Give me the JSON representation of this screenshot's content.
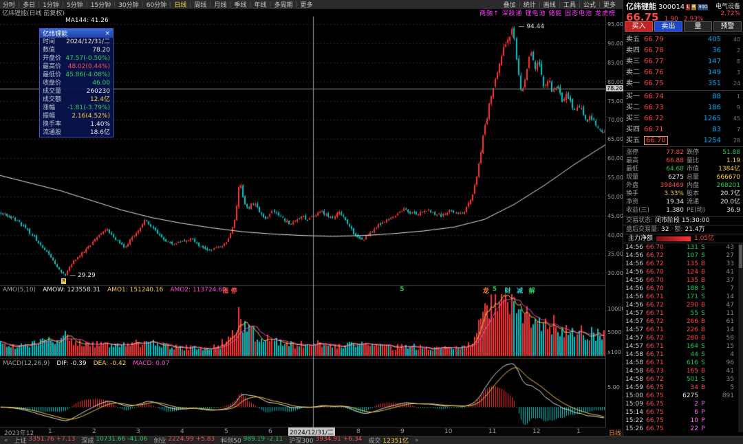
{
  "window": {
    "menu": {
      "left_items": [
        "分时",
        "多日",
        "1分钟",
        "5分钟",
        "15分钟",
        "30分钟",
        "60分钟",
        "日线",
        "周线",
        "月线",
        "季线",
        "年线",
        "多周期",
        "更多"
      ],
      "active_item": "日线",
      "right_items": [
        "叠加",
        "统计",
        "画线",
        "工具",
        "公式",
        "更多"
      ]
    },
    "chart_label": "亿纬锂能(日线 前复权)",
    "ticker_text": "两融↑ 深股通 锂电池 储能 固态电池 龙虎榜",
    "period_tag": "日线",
    "status_bar": [
      {
        "label": "上证",
        "value": "3351.76",
        "delta": "+7.13",
        "dir": "up"
      },
      {
        "label": "深成",
        "value": "10731.66",
        "delta": "-41.06",
        "dir": "down"
      },
      {
        "label": "创业",
        "value": "2224.99",
        "delta": "+5.83",
        "dir": "up"
      },
      {
        "label": "科创50",
        "value": "989.19",
        "delta": "-2.11",
        "dir": "down"
      },
      {
        "label": "沪深300",
        "value": "3934.91",
        "delta": "+6.34",
        "dir": "up"
      },
      {
        "label": "成交",
        "value": "12351亿",
        "delta": "",
        "dir": "flat"
      }
    ]
  },
  "tooltip": {
    "title": "亿纬锂能",
    "close_glyph": "×",
    "rows": [
      {
        "label": "时间",
        "value": "2024/12/31/二",
        "color": "#e8e8e8"
      },
      {
        "label": "数值",
        "value": "78.20",
        "color": "#e8e8e8"
      },
      {
        "label": "开盘价",
        "value": "47.57(-0.50%)",
        "color": "#2fd05a"
      },
      {
        "label": "最高价",
        "value": "48.02(0.44%)",
        "color": "#ff4a4a"
      },
      {
        "label": "最低价",
        "value": "45.86(-4.08%)",
        "color": "#2fd05a"
      },
      {
        "label": "收盘价",
        "value": "46.00",
        "color": "#2fd05a"
      },
      {
        "label": "成交量",
        "value": "260230",
        "color": "#e8e8e8"
      },
      {
        "label": "成交额",
        "value": "12.4亿",
        "color": "#ffd23c"
      },
      {
        "label": "涨幅",
        "value": "-1.81(-3.79%)",
        "color": "#2fd05a"
      },
      {
        "label": "振幅",
        "value": "2.16(4.52%)",
        "color": "#ffd23c"
      },
      {
        "label": "换手率",
        "value": "1.40%",
        "color": "#e8e8e8"
      },
      {
        "label": "流通股",
        "value": "18.6亿",
        "color": "#e8e8e8"
      }
    ]
  },
  "indicators": {
    "ma_label": "MA144: 41.26",
    "amo": {
      "name": "AMO(5,10)",
      "amow": "AMOW: 123558.31",
      "amo1": "AMO1: 151240.16",
      "amo2": "AMO2: 113724.60",
      "unit": "x100"
    },
    "macd": {
      "name": "MACD(12,26,9)",
      "dif": "DIF: -0.39",
      "dea": "DEA: -0.42",
      "macd": "MACD: 0.07",
      "axis_label": "5.00"
    }
  },
  "quote": {
    "name": "亿纬锂能",
    "code": "300014",
    "badges": [
      {
        "text": "L",
        "bg": "#a03030"
      },
      {
        "text": "R",
        "bg": "#a07818"
      },
      {
        "text": "300",
        "bg": "#2a4a78"
      }
    ],
    "industry": "电气设备",
    "price": "66.75",
    "change": "1.90",
    "pct": "2.93%",
    "pct2": "2.72%",
    "buttons": [
      "买入",
      "卖出",
      "量",
      "预警"
    ],
    "asks": [
      {
        "label": "卖五",
        "price": "66.79",
        "vol": "405",
        "n": "40"
      },
      {
        "label": "卖四",
        "price": "66.78",
        "vol": "36",
        "n": "2"
      },
      {
        "label": "卖三",
        "price": "66.77",
        "vol": "147",
        "n": "8"
      },
      {
        "label": "卖二",
        "price": "66.76",
        "vol": "149",
        "n": "3"
      },
      {
        "label": "卖一",
        "price": "66.75",
        "vol": "351",
        "n": "24"
      }
    ],
    "bids": [
      {
        "label": "买一",
        "price": "66.74",
        "vol": "88",
        "n": "1"
      },
      {
        "label": "买二",
        "price": "66.73",
        "vol": "186",
        "n": "9"
      },
      {
        "label": "买三",
        "price": "66.72",
        "vol": "1265",
        "n": "45"
      },
      {
        "label": "买四",
        "price": "66.71",
        "vol": "83",
        "n": "7"
      },
      {
        "label": "买五",
        "price": "66.70",
        "vol": "1254",
        "n": "28",
        "boxed": true
      }
    ],
    "stats": [
      {
        "k1": "涨停",
        "v1": "77.82",
        "c1": "#ff4a4a",
        "k2": "跌停",
        "v2": "51.88",
        "c2": "#1ecb5a"
      },
      {
        "k1": "最高",
        "v1": "66.88",
        "c1": "#ff4a4a",
        "k2": "量比",
        "v2": "1.19",
        "c2": "#ffd23c"
      },
      {
        "k1": "最低",
        "v1": "64.68",
        "c1": "#1ecb5a",
        "k2": "市值",
        "v2": "1384亿",
        "c2": "#ffd23c"
      },
      {
        "k1": "现量",
        "v1": "6275",
        "c1": "#e8e8e8",
        "k2": "总量",
        "v2": "666670",
        "c2": "#ffd23c"
      },
      {
        "k1": "外盘",
        "v1": "398469",
        "c1": "#ff4a4a",
        "k2": "内盘",
        "v2": "268201",
        "c2": "#1ecb5a"
      },
      {
        "k1": "换手",
        "v1": "3.33%",
        "c1": "#ffd23c",
        "k2": "股本",
        "v2": "20.7亿",
        "c2": "#e8e8e8"
      },
      {
        "k1": "净资",
        "v1": "19.34",
        "c1": "#e8e8e8",
        "k2": "流通",
        "v2": "20.0亿",
        "c2": "#e8e8e8"
      },
      {
        "k1": "收益(三)",
        "v1": "1.380",
        "c1": "#e8e8e8",
        "k2": "PE(动)",
        "v2": "36.9",
        "c2": "#e8e8e8"
      }
    ],
    "session": {
      "label": "交易状态:",
      "value": "闭市阶段 15:30:00"
    },
    "after_hours": {
      "label": "盘后交易量:",
      "vol": "32",
      "amount_label": "额:",
      "amount": "21.4万"
    },
    "main_flow": {
      "label": "主力净额",
      "value": "1.05亿"
    },
    "ticks": [
      [
        "14:56",
        "66.70",
        "131",
        "S",
        "43"
      ],
      [
        "14:56",
        "66.72",
        "107",
        "S",
        "27"
      ],
      [
        "14:56",
        "66.72",
        "135",
        "B",
        "33"
      ],
      [
        "14:56",
        "66.70",
        "124",
        "B",
        "41"
      ],
      [
        "14:56",
        "66.70",
        "135",
        "B",
        "37"
      ],
      [
        "14:56",
        "66.70",
        "188",
        "S",
        "7"
      ],
      [
        "14:56",
        "66.71",
        "171",
        "S",
        "14"
      ],
      [
        "14:56",
        "66.72",
        "290",
        "B",
        "47"
      ],
      [
        "14:57",
        "66.71",
        "55",
        "S",
        "11"
      ],
      [
        "14:57",
        "66.72",
        "266",
        "B",
        "61"
      ],
      [
        "14:57",
        "66.71",
        "226",
        "B",
        "14"
      ],
      [
        "14:57",
        "66.72",
        "280",
        "B",
        "58"
      ],
      [
        "14:57",
        "66.71",
        "164",
        "S",
        "15"
      ],
      [
        "14:58",
        "66.71",
        "44",
        "S",
        "4"
      ],
      [
        "14:58",
        "66.71",
        "616",
        "S",
        "96"
      ],
      [
        "14:58",
        "66.73",
        "165",
        "B",
        "41"
      ],
      [
        "14:58",
        "66.72",
        "501",
        "S",
        "35"
      ],
      [
        "14:59",
        "66.75",
        "34",
        "B",
        "5"
      ],
      [
        "15:00",
        "66.75",
        "6275",
        "",
        "891"
      ],
      [
        "15:09",
        "66.75",
        "2",
        "P",
        ""
      ],
      [
        "15:14",
        "66.75",
        "6",
        "P",
        ""
      ],
      [
        "15:22",
        "66.75",
        "10",
        "P",
        ""
      ],
      [
        "15:26",
        "66.75",
        "22",
        "P",
        ""
      ]
    ]
  },
  "chart_data": {
    "type": "candlestick",
    "symbol": "亿纬锂能 300014",
    "period": "日线 前复权",
    "seed": 77,
    "num_bars": 290,
    "price_axis": {
      "min": 27,
      "max": 97,
      "ticks": [
        95,
        90,
        85,
        80,
        75,
        70,
        65,
        60,
        55,
        50,
        45,
        40,
        35,
        30
      ]
    },
    "x_labels": [
      "2023年12",
      "1",
      "2",
      "3",
      "4",
      "5",
      "6",
      "7",
      "8",
      "9",
      "10",
      "11",
      "12",
      "1"
    ],
    "crosshair": {
      "x_frac": 0.517,
      "price": 78.2,
      "price_label": "78.20",
      "date_label": "2024/12/31/二"
    },
    "annotations": {
      "high_label": "94.44",
      "low_label": "29.29"
    },
    "close_anchors": [
      [
        0,
        45.5
      ],
      [
        0.02,
        44.5
      ],
      [
        0.04,
        42.0
      ],
      [
        0.06,
        38.5
      ],
      [
        0.08,
        34.5
      ],
      [
        0.1,
        30.5
      ],
      [
        0.107,
        29.4
      ],
      [
        0.115,
        32.0
      ],
      [
        0.13,
        34.5
      ],
      [
        0.145,
        36.5
      ],
      [
        0.16,
        39.5
      ],
      [
        0.175,
        41.5
      ],
      [
        0.19,
        39.0
      ],
      [
        0.205,
        36.8
      ],
      [
        0.22,
        39.5
      ],
      [
        0.24,
        44.0
      ],
      [
        0.255,
        41.5
      ],
      [
        0.27,
        38.5
      ],
      [
        0.285,
        37.5
      ],
      [
        0.3,
        38.2
      ],
      [
        0.315,
        39.0
      ],
      [
        0.33,
        37.2
      ],
      [
        0.345,
        36.0
      ],
      [
        0.36,
        36.8
      ],
      [
        0.375,
        38.0
      ],
      [
        0.388,
        44.0
      ],
      [
        0.396,
        54.0
      ],
      [
        0.402,
        49.0
      ],
      [
        0.41,
        47.0
      ],
      [
        0.42,
        48.5
      ],
      [
        0.43,
        45.5
      ],
      [
        0.44,
        44.0
      ],
      [
        0.45,
        46.5
      ],
      [
        0.46,
        45.0
      ],
      [
        0.47,
        43.8
      ],
      [
        0.48,
        42.8
      ],
      [
        0.49,
        43.5
      ],
      [
        0.5,
        44.8
      ],
      [
        0.51,
        44.0
      ],
      [
        0.52,
        45.2
      ],
      [
        0.53,
        46.2
      ],
      [
        0.54,
        45.2
      ],
      [
        0.55,
        44.5
      ],
      [
        0.56,
        46.0
      ],
      [
        0.57,
        44.0
      ],
      [
        0.58,
        41.5
      ],
      [
        0.59,
        39.5
      ],
      [
        0.6,
        38.5
      ],
      [
        0.61,
        40.0
      ],
      [
        0.62,
        41.5
      ],
      [
        0.63,
        43.0
      ],
      [
        0.64,
        43.8
      ],
      [
        0.65,
        44.5
      ],
      [
        0.66,
        45.5
      ],
      [
        0.67,
        46.8
      ],
      [
        0.68,
        45.8
      ],
      [
        0.69,
        45.0
      ],
      [
        0.7,
        46.0
      ],
      [
        0.71,
        46.5
      ],
      [
        0.72,
        45.5
      ],
      [
        0.73,
        45.0
      ],
      [
        0.74,
        45.8
      ],
      [
        0.75,
        46.2
      ],
      [
        0.76,
        45.2
      ],
      [
        0.77,
        46.5
      ],
      [
        0.78,
        49.5
      ],
      [
        0.79,
        56.0
      ],
      [
        0.8,
        66.0
      ],
      [
        0.81,
        74.0
      ],
      [
        0.82,
        81.0
      ],
      [
        0.83,
        87.0
      ],
      [
        0.84,
        91.0
      ],
      [
        0.85,
        93.5
      ],
      [
        0.856,
        84.0
      ],
      [
        0.862,
        77.0
      ],
      [
        0.87,
        82.0
      ],
      [
        0.878,
        88.0
      ],
      [
        0.885,
        83.0
      ],
      [
        0.893,
        85.0
      ],
      [
        0.9,
        79.0
      ],
      [
        0.908,
        81.0
      ],
      [
        0.915,
        77.0
      ],
      [
        0.923,
        79.0
      ],
      [
        0.93,
        75.0
      ],
      [
        0.94,
        76.5
      ],
      [
        0.95,
        72.5
      ],
      [
        0.96,
        73.5
      ],
      [
        0.97,
        70.0
      ],
      [
        0.98,
        70.5
      ],
      [
        0.99,
        68.0
      ],
      [
        1,
        66.8
      ]
    ],
    "ma144_anchors": [
      [
        0,
        55.5
      ],
      [
        0.05,
        53.5
      ],
      [
        0.1,
        51.5
      ],
      [
        0.15,
        49.0
      ],
      [
        0.2,
        46.5
      ],
      [
        0.25,
        44.5
      ],
      [
        0.3,
        43.0
      ],
      [
        0.35,
        41.8
      ],
      [
        0.4,
        40.8
      ],
      [
        0.45,
        40.2
      ],
      [
        0.5,
        39.8
      ],
      [
        0.55,
        39.6
      ],
      [
        0.6,
        39.8
      ],
      [
        0.65,
        40.3
      ],
      [
        0.7,
        41.0
      ],
      [
        0.75,
        42.0
      ],
      [
        0.8,
        44.0
      ],
      [
        0.85,
        48.0
      ],
      [
        0.9,
        53.0
      ],
      [
        0.95,
        58.5
      ],
      [
        1,
        63.5
      ]
    ],
    "volume_axis": {
      "max": 13000,
      "ticks": [
        10000,
        5000
      ]
    },
    "volume_anchors": [
      [
        0,
        2600
      ],
      [
        0.02,
        2000
      ],
      [
        0.05,
        2400
      ],
      [
        0.08,
        3000
      ],
      [
        0.105,
        4200
      ],
      [
        0.13,
        2600
      ],
      [
        0.16,
        2800
      ],
      [
        0.19,
        2200
      ],
      [
        0.22,
        2600
      ],
      [
        0.245,
        3200
      ],
      [
        0.27,
        2200
      ],
      [
        0.3,
        1800
      ],
      [
        0.33,
        1700
      ],
      [
        0.36,
        1900
      ],
      [
        0.388,
        5200
      ],
      [
        0.396,
        8800
      ],
      [
        0.41,
        5200
      ],
      [
        0.43,
        3800
      ],
      [
        0.45,
        3300
      ],
      [
        0.47,
        2500
      ],
      [
        0.5,
        2400
      ],
      [
        0.52,
        3400
      ],
      [
        0.54,
        2600
      ],
      [
        0.56,
        2300
      ],
      [
        0.58,
        2500
      ],
      [
        0.6,
        2200
      ],
      [
        0.62,
        1900
      ],
      [
        0.65,
        1800
      ],
      [
        0.67,
        2200
      ],
      [
        0.7,
        1700
      ],
      [
        0.73,
        1500
      ],
      [
        0.76,
        1600
      ],
      [
        0.78,
        2800
      ],
      [
        0.79,
        5200
      ],
      [
        0.8,
        9200
      ],
      [
        0.81,
        11200
      ],
      [
        0.82,
        12200
      ],
      [
        0.83,
        11600
      ],
      [
        0.84,
        10400
      ],
      [
        0.85,
        11800
      ],
      [
        0.86,
        9000
      ],
      [
        0.87,
        8000
      ],
      [
        0.88,
        8600
      ],
      [
        0.89,
        7200
      ],
      [
        0.9,
        7600
      ],
      [
        0.91,
        6300
      ],
      [
        0.92,
        6600
      ],
      [
        0.93,
        5600
      ],
      [
        0.94,
        5200
      ],
      [
        0.95,
        4800
      ],
      [
        0.96,
        5200
      ],
      [
        0.97,
        4300
      ],
      [
        0.98,
        4800
      ],
      [
        0.99,
        4400
      ],
      [
        1,
        5000
      ]
    ],
    "markers": [
      {
        "t": 0.372,
        "text": "涨",
        "color": "#ff4a4a"
      },
      {
        "t": 0.386,
        "text": "停",
        "color": "#ff4a4a"
      },
      {
        "t": 0.665,
        "text": "5",
        "color": "#1ecb5a"
      },
      {
        "t": 0.802,
        "text": "龙",
        "color": "#ff8833"
      },
      {
        "t": 0.818,
        "text": "5",
        "color": "#1ecb5a"
      },
      {
        "t": 0.838,
        "text": "财",
        "color": "#2fc6c6"
      },
      {
        "t": 0.858,
        "text": "减",
        "color": "#2fc6c6"
      },
      {
        "t": 0.878,
        "text": "解",
        "color": "#1ecb5a"
      }
    ],
    "flag": {
      "t": 0.105,
      "text": "R"
    }
  }
}
